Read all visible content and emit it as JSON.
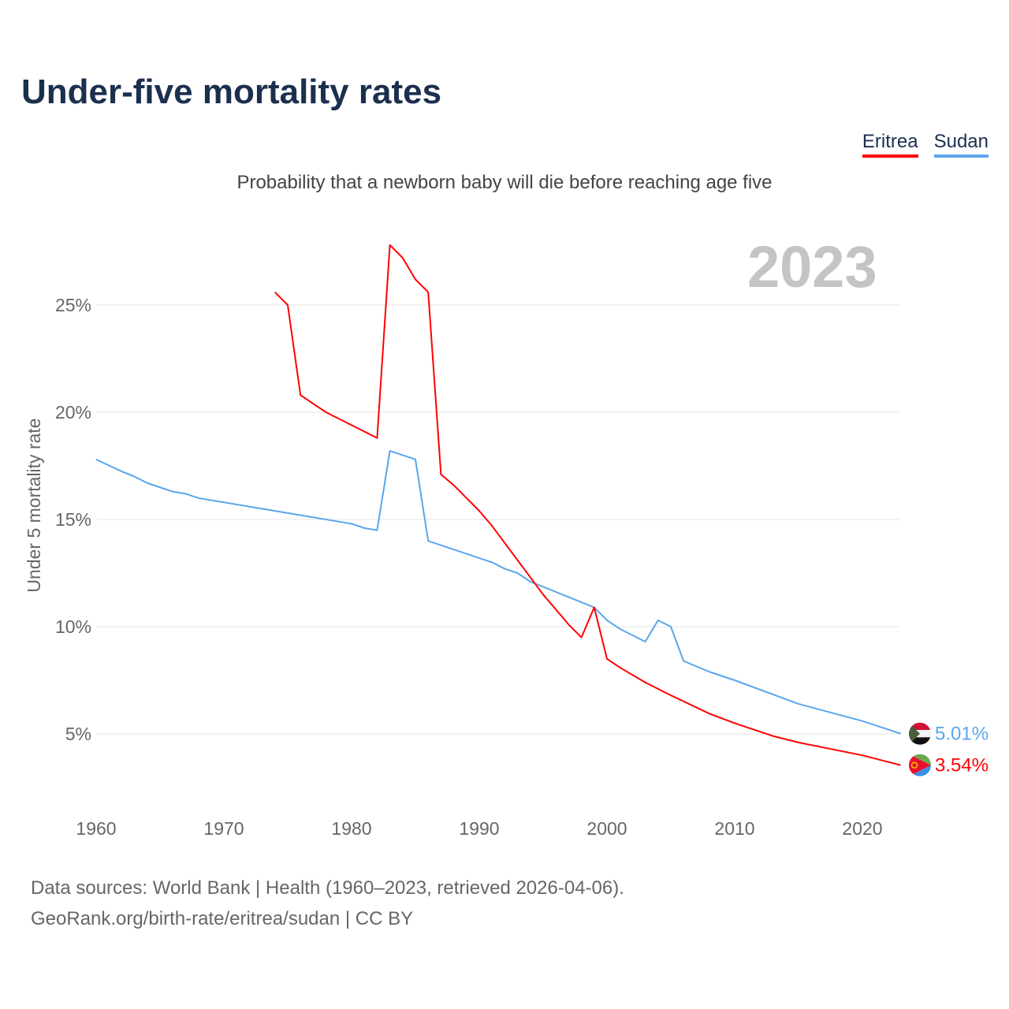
{
  "title": "Under-five mortality rates",
  "subtitle": "Probability that a newborn baby will die before reaching age five",
  "year_label": "2023",
  "legend": [
    {
      "name": "Eritrea",
      "color": "#ff0000"
    },
    {
      "name": "Sudan",
      "color": "#5aa6ec"
    }
  ],
  "source": {
    "line1": "Data sources: World Bank | Health (1960–2023, retrieved 2026-04-06).",
    "line2": "GeoRank.org/birth-rate/eritrea/sudan | CC BY"
  },
  "chart_data": {
    "type": "line",
    "title": "Under-five mortality rates",
    "ylabel": "Under 5 mortality rate",
    "xlabel": "",
    "xlim": [
      1960,
      2023
    ],
    "ylim": [
      0,
      27.8
    ],
    "x_ticks": [
      1960,
      1970,
      1980,
      1990,
      2000,
      2010,
      2020
    ],
    "y_ticks": [
      {
        "v": 5,
        "label": "5%"
      },
      {
        "v": 10,
        "label": "10%"
      },
      {
        "v": 15,
        "label": "15%"
      },
      {
        "v": 20,
        "label": "20%"
      },
      {
        "v": 25,
        "label": "25%"
      }
    ],
    "grid": true,
    "series": [
      {
        "name": "Sudan",
        "color": "#5aa6ec",
        "end_label": "5.01%",
        "flag": "sudan-flag",
        "points": [
          [
            1960,
            17.8
          ],
          [
            1962,
            17.24
          ],
          [
            1963,
            17.0
          ],
          [
            1964,
            16.7
          ],
          [
            1966,
            16.3
          ],
          [
            1967,
            16.2
          ],
          [
            1968,
            16.0
          ],
          [
            1980,
            14.8
          ],
          [
            1981,
            14.6
          ],
          [
            1982,
            14.5
          ],
          [
            1983,
            18.2
          ],
          [
            1985,
            17.8
          ],
          [
            1986,
            14.0
          ],
          [
            1991,
            13.0
          ],
          [
            1992,
            12.7
          ],
          [
            1993,
            12.5
          ],
          [
            1994,
            12.1
          ],
          [
            1999,
            10.9
          ],
          [
            2000,
            10.3
          ],
          [
            2001,
            9.9
          ],
          [
            2003,
            9.3
          ],
          [
            2004,
            10.3
          ],
          [
            2005,
            10.0
          ],
          [
            2006,
            8.4
          ],
          [
            2008,
            7.9
          ],
          [
            2010,
            7.5
          ],
          [
            2015,
            6.4
          ],
          [
            2020,
            5.6
          ],
          [
            2023,
            5.01
          ]
        ]
      },
      {
        "name": "Eritrea",
        "color": "#ff0000",
        "end_label": "3.54%",
        "flag": "eritrea-flag",
        "points": [
          [
            1974,
            25.6
          ],
          [
            1975,
            25.0
          ],
          [
            1976,
            20.8
          ],
          [
            1978,
            20.0
          ],
          [
            1982,
            18.8
          ],
          [
            1983,
            27.8
          ],
          [
            1984,
            27.2
          ],
          [
            1985,
            26.2
          ],
          [
            1986,
            25.6
          ],
          [
            1987,
            17.1
          ],
          [
            1988,
            16.6
          ],
          [
            1990,
            15.4
          ],
          [
            1991,
            14.7
          ],
          [
            1995,
            11.5
          ],
          [
            1997,
            10.1
          ],
          [
            1998,
            9.5
          ],
          [
            1999,
            10.9
          ],
          [
            2000,
            8.5
          ],
          [
            2001,
            8.1
          ],
          [
            2003,
            7.4
          ],
          [
            2005,
            6.8
          ],
          [
            2008,
            5.95
          ],
          [
            2010,
            5.5
          ],
          [
            2013,
            4.9
          ],
          [
            2015,
            4.6
          ],
          [
            2020,
            4.0
          ],
          [
            2023,
            3.54
          ]
        ]
      }
    ]
  }
}
